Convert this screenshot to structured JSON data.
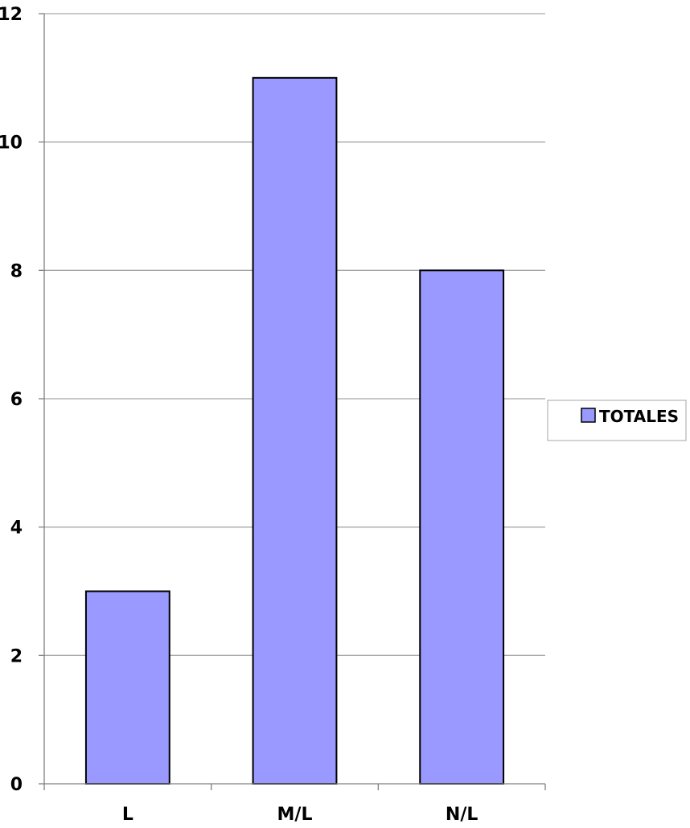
{
  "chart_data": {
    "type": "bar",
    "categories": [
      "L",
      "M/L",
      "N/L"
    ],
    "series": [
      {
        "name": "TOTALES",
        "values": [
          3,
          11,
          8
        ],
        "color": "#9999FF"
      }
    ],
    "title": "",
    "xlabel": "",
    "ylabel": "",
    "ylim": [
      0,
      12
    ],
    "yticks": [
      "0",
      "2",
      "4",
      "6",
      "8",
      "10",
      "12"
    ],
    "grid": true,
    "legend_position": "right",
    "colors": {
      "bar_fill": "#9999FF",
      "bar_stroke": "#000000",
      "gridline": "#a6a6a6",
      "axis": "#808080"
    }
  }
}
